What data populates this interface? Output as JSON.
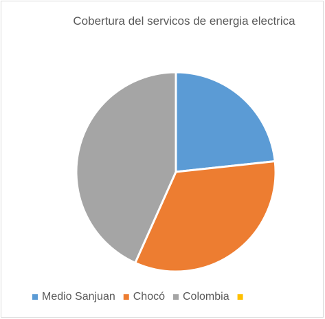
{
  "chart_data": {
    "type": "pie",
    "title": "Cobertura del servicos de energia electrica",
    "categories": [
      "Medio Sanjuan",
      "Chocó",
      "Colombia",
      null
    ],
    "values": [
      23.3,
      33.4,
      43.3,
      0
    ],
    "colors": [
      "#5b9bd5",
      "#ed7d31",
      "#a5a5a5",
      "#ffc000"
    ],
    "legend": "bottom"
  }
}
